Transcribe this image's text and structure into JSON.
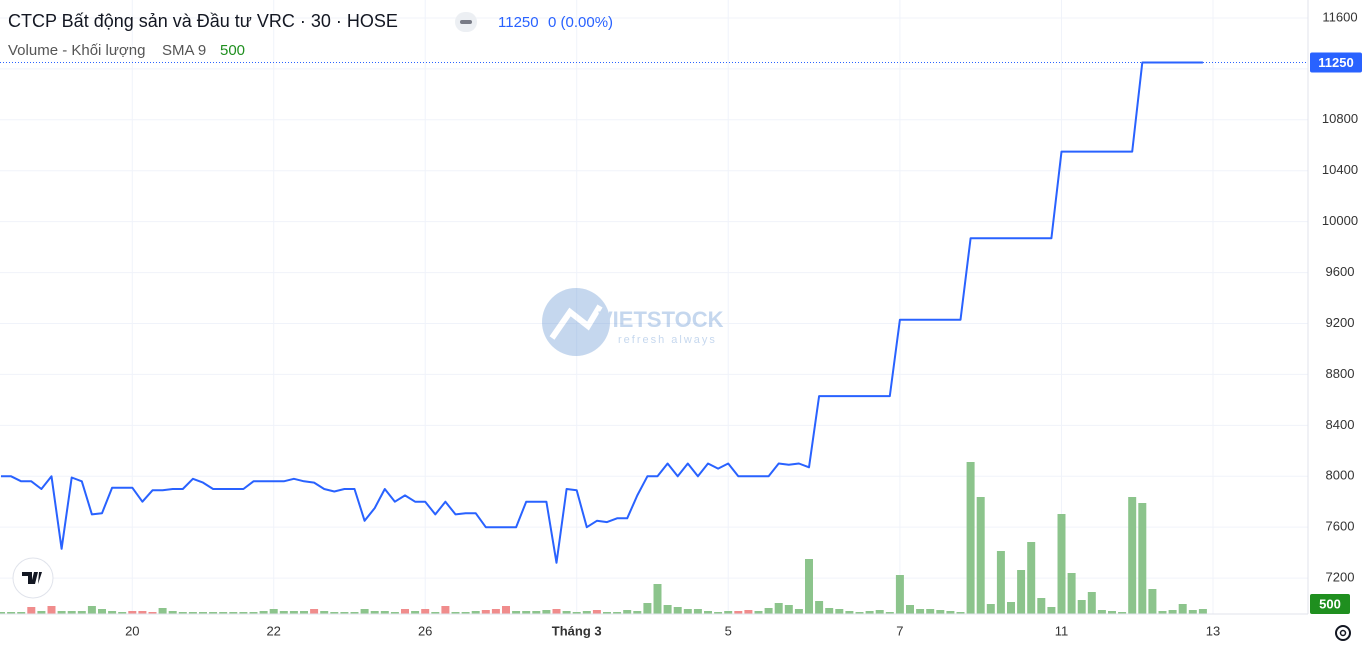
{
  "chart_data": {
    "type": "line",
    "title": "CTCP Bất động sản và Đầu tư VRC · 30 · HOSE",
    "change": "0 (0.00%)",
    "color": "#2962ff",
    "grid": true,
    "last_price_line": true,
    "watermark": [
      "VIETSTOCK",
      "refresh always"
    ],
    "ylim": [
      6918,
      11741
    ],
    "yticks": [
      7200,
      7600,
      8000,
      8400,
      8800,
      9200,
      9600,
      10000,
      10400,
      10800,
      11200,
      11600
    ],
    "categories": [
      null,
      null,
      null,
      null,
      null,
      null,
      null,
      null,
      null,
      null,
      null,
      null,
      null,
      "20",
      null,
      null,
      null,
      null,
      null,
      null,
      null,
      null,
      null,
      null,
      null,
      null,
      null,
      "22",
      null,
      null,
      null,
      null,
      null,
      null,
      null,
      null,
      null,
      null,
      null,
      null,
      null,
      null,
      "26",
      null,
      null,
      null,
      null,
      null,
      null,
      null,
      null,
      null,
      null,
      null,
      null,
      null,
      null,
      "Tháng 3",
      null,
      null,
      null,
      null,
      null,
      null,
      null,
      null,
      null,
      null,
      null,
      null,
      null,
      null,
      "5",
      null,
      null,
      null,
      null,
      null,
      null,
      null,
      null,
      null,
      null,
      null,
      null,
      null,
      null,
      null,
      null,
      "7",
      null,
      null,
      null,
      null,
      null,
      null,
      null,
      null,
      null,
      null,
      null,
      null,
      null,
      null,
      null,
      "11",
      null,
      null,
      null,
      null,
      null,
      null,
      null,
      null,
      null,
      null,
      null,
      null,
      null,
      null,
      "13"
    ],
    "values": [
      8000,
      8000,
      7960,
      7960,
      7900,
      8000,
      7430,
      7990,
      7960,
      7700,
      7710,
      7910,
      7910,
      7910,
      7800,
      7890,
      7890,
      7900,
      7900,
      7980,
      7950,
      7900,
      7900,
      7900,
      7900,
      7960,
      7960,
      7960,
      7960,
      7980,
      7960,
      7950,
      7900,
      7880,
      7900,
      7900,
      7650,
      7750,
      7900,
      7800,
      7850,
      7800,
      7800,
      7700,
      7800,
      7700,
      7710,
      7710,
      7600,
      7600,
      7600,
      7600,
      7800,
      7800,
      7800,
      7320,
      7900,
      7890,
      7600,
      7650,
      7640,
      7670,
      7670,
      7850,
      8000,
      8000,
      8100,
      8000,
      8100,
      8000,
      8100,
      8060,
      8100,
      8000,
      8000,
      8000,
      8000,
      8100,
      8090,
      8100,
      8070,
      8630,
      8630,
      8630,
      8630,
      8630,
      8630,
      8630,
      8630,
      9230,
      9230,
      9230,
      9230,
      9230,
      9230,
      9230,
      9870,
      9870,
      9870,
      9870,
      9870,
      9870,
      9870,
      9870,
      9870,
      10550,
      10550,
      10550,
      10550,
      10550,
      10550,
      10550,
      10550,
      11250,
      11250,
      11250,
      11250,
      11250,
      11250,
      11250,
      null
    ],
    "volume": {
      "name": "Volume - Khối lượng",
      "indicator": "SMA 9",
      "axis": "y2",
      "values": [
        200,
        200,
        200,
        700,
        300,
        800,
        300,
        300,
        300,
        800,
        500,
        300,
        200,
        300,
        300,
        200,
        600,
        300,
        200,
        200,
        200,
        200,
        200,
        200,
        200,
        200,
        300,
        500,
        300,
        300,
        300,
        500,
        300,
        200,
        200,
        200,
        500,
        300,
        300,
        200,
        500,
        300,
        500,
        200,
        800,
        200,
        200,
        300,
        400,
        500,
        800,
        300,
        300,
        300,
        400,
        500,
        300,
        200,
        300,
        400,
        200,
        200,
        400,
        300,
        1100,
        3000,
        900,
        700,
        500,
        500,
        300,
        200,
        300,
        300,
        400,
        300,
        600,
        1100,
        900,
        500,
        5500,
        1300,
        600,
        500,
        300,
        200,
        300,
        400,
        200,
        3900,
        900,
        500,
        500,
        400,
        300,
        200,
        15200,
        11700,
        1000,
        6300,
        1200,
        4400,
        7200,
        1600,
        700,
        10000,
        4100,
        1400,
        2200,
        400,
        300,
        200,
        11700,
        11100,
        2500,
        300,
        400,
        1000,
        400,
        500,
        null
      ],
      "colors": [
        "#8cc48c",
        "#8cc48c",
        "#8cc48c",
        "#f08c8c",
        "#8cc48c",
        "#f08c8c",
        "#8cc48c",
        "#8cc48c",
        "#8cc48c",
        "#8cc48c",
        "#8cc48c",
        "#8cc48c",
        "#8cc48c",
        "#f08c8c",
        "#f08c8c",
        "#f08c8c",
        "#8cc48c",
        "#8cc48c",
        "#8cc48c",
        "#8cc48c",
        "#8cc48c",
        "#8cc48c",
        "#8cc48c",
        "#8cc48c",
        "#8cc48c",
        "#8cc48c",
        "#8cc48c",
        "#8cc48c",
        "#8cc48c",
        "#8cc48c",
        "#8cc48c",
        "#f08c8c",
        "#8cc48c",
        "#8cc48c",
        "#8cc48c",
        "#8cc48c",
        "#8cc48c",
        "#8cc48c",
        "#8cc48c",
        "#8cc48c",
        "#f08c8c",
        "#8cc48c",
        "#f08c8c",
        "#8cc48c",
        "#f08c8c",
        "#8cc48c",
        "#8cc48c",
        "#8cc48c",
        "#f08c8c",
        "#f08c8c",
        "#f08c8c",
        "#8cc48c",
        "#8cc48c",
        "#8cc48c",
        "#8cc48c",
        "#f08c8c",
        "#8cc48c",
        "#8cc48c",
        "#8cc48c",
        "#f08c8c",
        "#8cc48c",
        "#8cc48c",
        "#8cc48c",
        "#8cc48c",
        "#8cc48c",
        "#8cc48c",
        "#8cc48c",
        "#8cc48c",
        "#8cc48c",
        "#8cc48c",
        "#8cc48c",
        "#8cc48c",
        "#8cc48c",
        "#f08c8c",
        "#f08c8c",
        "#8cc48c",
        "#8cc48c",
        "#8cc48c",
        "#8cc48c",
        "#8cc48c",
        "#8cc48c",
        "#8cc48c",
        "#8cc48c",
        "#8cc48c",
        "#8cc48c",
        "#8cc48c",
        "#8cc48c",
        "#8cc48c",
        "#8cc48c",
        "#8cc48c",
        "#8cc48c",
        "#8cc48c",
        "#8cc48c",
        "#8cc48c",
        "#8cc48c",
        "#8cc48c",
        "#8cc48c",
        "#8cc48c",
        "#8cc48c",
        "#8cc48c",
        "#8cc48c",
        "#8cc48c",
        "#8cc48c",
        "#8cc48c",
        "#8cc48c",
        "#8cc48c",
        "#8cc48c",
        "#8cc48c",
        "#8cc48c",
        "#8cc48c",
        "#8cc48c",
        "#8cc48c",
        "#8cc48c",
        "#8cc48c",
        "#8cc48c",
        "#8cc48c",
        "#8cc48c",
        "#8cc48c",
        "#8cc48c",
        "#8cc48c",
        "#8cc48c"
      ],
      "label_color": "#1f8f1f"
    },
    "y2lim": [
      0,
      61400
    ]
  }
}
